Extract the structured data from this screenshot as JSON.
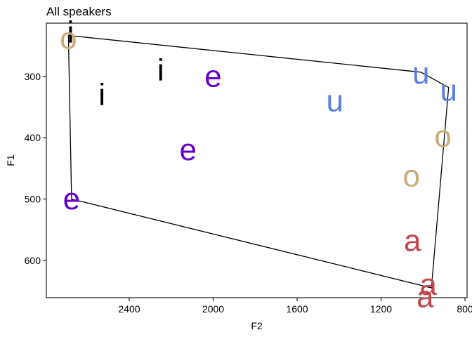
{
  "chart_data": {
    "type": "scatter",
    "title": "All speakers",
    "xlabel": "F2",
    "ylabel": "F1",
    "x_reversed": true,
    "y_reversed": true,
    "xlim": [
      2795,
      790
    ],
    "ylim": [
      213,
      661
    ],
    "x_ticks": [
      2400,
      2000,
      1600,
      1200,
      800
    ],
    "y_ticks": [
      300,
      400,
      500,
      600
    ],
    "grid": false,
    "legend": "none",
    "points": [
      {
        "label": "i",
        "x": 2680,
        "y": 228,
        "color": "#000000"
      },
      {
        "label": "i",
        "x": 2250,
        "y": 290,
        "color": "#000000"
      },
      {
        "label": "i",
        "x": 2530,
        "y": 330,
        "color": "#000000"
      },
      {
        "label": "e",
        "x": 2000,
        "y": 300,
        "color": "#6600cc"
      },
      {
        "label": "e",
        "x": 2120,
        "y": 420,
        "color": "#6600cc"
      },
      {
        "label": "e",
        "x": 2675,
        "y": 500,
        "color": "#6600cc"
      },
      {
        "label": "u",
        "x": 1010,
        "y": 295,
        "color": "#5b7fe0"
      },
      {
        "label": "u",
        "x": 1420,
        "y": 340,
        "color": "#5b7fe0"
      },
      {
        "label": "u",
        "x": 878,
        "y": 323,
        "color": "#5b7fe0"
      },
      {
        "label": "o",
        "x": 2690,
        "y": 238,
        "color": "#c8ac78"
      },
      {
        "label": "o",
        "x": 905,
        "y": 398,
        "color": "#c8ac78"
      },
      {
        "label": "o",
        "x": 1055,
        "y": 463,
        "color": "#c8ac78"
      },
      {
        "label": "a",
        "x": 1050,
        "y": 568,
        "color": "#c0474e"
      },
      {
        "label": "a",
        "x": 975,
        "y": 640,
        "color": "#c0474e"
      },
      {
        "label": "a",
        "x": 990,
        "y": 660,
        "color": "#c0474e"
      }
    ],
    "hull": [
      {
        "x": 2690,
        "y": 233
      },
      {
        "x": 1010,
        "y": 293
      },
      {
        "x": 878,
        "y": 318
      },
      {
        "x": 960,
        "y": 645
      },
      {
        "x": 2675,
        "y": 500
      }
    ]
  }
}
